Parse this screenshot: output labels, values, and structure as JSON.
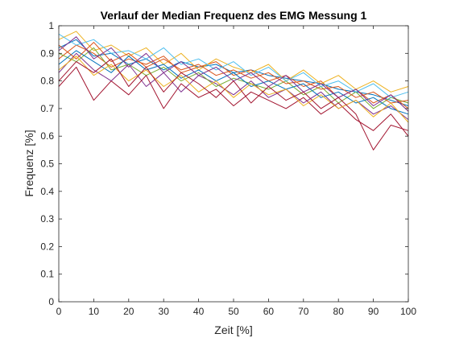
{
  "chart_data": {
    "type": "line",
    "title": "Verlauf der Median Frequenz des EMG Messung 1",
    "xlabel": "Zeit [%]",
    "ylabel": "Frequenz [%]",
    "xlim": [
      0,
      100
    ],
    "ylim": [
      0,
      1
    ],
    "xticks": [
      0,
      10,
      20,
      30,
      40,
      50,
      60,
      70,
      80,
      90,
      100
    ],
    "yticks": [
      0,
      0.1,
      0.2,
      0.3,
      0.4,
      0.5,
      0.6,
      0.7,
      0.8,
      0.9,
      1
    ],
    "ytick_labels": [
      "0",
      "0.1",
      "0.2",
      "0.3",
      "0.4",
      "0.5",
      "0.6",
      "0.7",
      "0.8",
      "0.9",
      "1"
    ],
    "grid": false,
    "box": true,
    "series": [
      {
        "color": "#0072BD",
        "x": [
          0,
          5,
          10,
          15,
          20,
          25,
          30,
          35,
          40,
          45,
          50,
          55,
          60,
          65,
          70,
          75,
          80,
          85,
          90,
          95,
          100
        ],
        "y": [
          0.92,
          0.95,
          0.89,
          0.9,
          0.86,
          0.88,
          0.84,
          0.87,
          0.85,
          0.86,
          0.83,
          0.84,
          0.82,
          0.81,
          0.8,
          0.79,
          0.77,
          0.76,
          0.75,
          0.73,
          0.71
        ]
      },
      {
        "color": "#D95319",
        "x": [
          0,
          5,
          10,
          15,
          20,
          25,
          30,
          35,
          40,
          45,
          50,
          55,
          60,
          65,
          70,
          75,
          80,
          85,
          90,
          95,
          100
        ],
        "y": [
          0.88,
          0.93,
          0.9,
          0.85,
          0.88,
          0.86,
          0.89,
          0.83,
          0.85,
          0.87,
          0.82,
          0.84,
          0.8,
          0.82,
          0.78,
          0.8,
          0.74,
          0.77,
          0.72,
          0.75,
          0.7
        ]
      },
      {
        "color": "#EDB120",
        "x": [
          0,
          5,
          10,
          15,
          20,
          25,
          30,
          35,
          40,
          45,
          50,
          55,
          60,
          65,
          70,
          75,
          80,
          85,
          90,
          95,
          100
        ],
        "y": [
          0.95,
          0.98,
          0.91,
          0.93,
          0.89,
          0.92,
          0.86,
          0.9,
          0.84,
          0.88,
          0.85,
          0.83,
          0.86,
          0.8,
          0.84,
          0.79,
          0.82,
          0.77,
          0.8,
          0.76,
          0.78
        ]
      },
      {
        "color": "#7E2F8E",
        "x": [
          0,
          5,
          10,
          15,
          20,
          25,
          30,
          35,
          40,
          45,
          50,
          55,
          60,
          65,
          70,
          75,
          80,
          85,
          90,
          95,
          100
        ],
        "y": [
          0.83,
          0.9,
          0.84,
          0.8,
          0.86,
          0.78,
          0.83,
          0.76,
          0.82,
          0.79,
          0.75,
          0.8,
          0.74,
          0.77,
          0.72,
          0.76,
          0.7,
          0.73,
          0.68,
          0.71,
          0.66
        ]
      },
      {
        "color": "#77AC30",
        "x": [
          0,
          5,
          10,
          15,
          20,
          25,
          30,
          35,
          40,
          45,
          50,
          55,
          60,
          65,
          70,
          75,
          80,
          85,
          90,
          95,
          100
        ],
        "y": [
          0.9,
          0.87,
          0.92,
          0.84,
          0.86,
          0.82,
          0.85,
          0.8,
          0.83,
          0.78,
          0.81,
          0.79,
          0.77,
          0.8,
          0.75,
          0.78,
          0.72,
          0.76,
          0.7,
          0.74,
          0.72
        ]
      },
      {
        "color": "#4DBEEE",
        "x": [
          0,
          5,
          10,
          15,
          20,
          25,
          30,
          35,
          40,
          45,
          50,
          55,
          60,
          65,
          70,
          75,
          80,
          85,
          90,
          95,
          100
        ],
        "y": [
          0.97,
          0.93,
          0.95,
          0.9,
          0.91,
          0.88,
          0.92,
          0.86,
          0.88,
          0.84,
          0.87,
          0.82,
          0.85,
          0.8,
          0.83,
          0.78,
          0.8,
          0.76,
          0.79,
          0.74,
          0.76
        ]
      },
      {
        "color": "#A2142F",
        "x": [
          0,
          5,
          10,
          15,
          20,
          25,
          30,
          35,
          40,
          45,
          50,
          55,
          60,
          65,
          70,
          75,
          80,
          85,
          90,
          95,
          100
        ],
        "y": [
          0.78,
          0.85,
          0.73,
          0.8,
          0.75,
          0.82,
          0.7,
          0.79,
          0.74,
          0.77,
          0.71,
          0.76,
          0.73,
          0.7,
          0.74,
          0.68,
          0.72,
          0.66,
          0.62,
          0.68,
          0.6
        ]
      },
      {
        "color": "#0072BD",
        "x": [
          0,
          5,
          10,
          15,
          20,
          25,
          30,
          35,
          40,
          45,
          50,
          55,
          60,
          65,
          70,
          75,
          80,
          85,
          90,
          95,
          100
        ],
        "y": [
          0.86,
          0.91,
          0.87,
          0.83,
          0.89,
          0.84,
          0.86,
          0.81,
          0.84,
          0.8,
          0.83,
          0.78,
          0.8,
          0.77,
          0.79,
          0.74,
          0.76,
          0.72,
          0.74,
          0.7,
          0.68
        ]
      },
      {
        "color": "#D95319",
        "x": [
          0,
          5,
          10,
          15,
          20,
          25,
          30,
          35,
          40,
          45,
          50,
          55,
          60,
          65,
          70,
          75,
          80,
          85,
          90,
          95,
          100
        ],
        "y": [
          0.93,
          0.88,
          0.94,
          0.87,
          0.9,
          0.85,
          0.88,
          0.84,
          0.86,
          0.82,
          0.84,
          0.81,
          0.83,
          0.79,
          0.8,
          0.77,
          0.78,
          0.74,
          0.76,
          0.72,
          0.73
        ]
      },
      {
        "color": "#EDB120",
        "x": [
          0,
          5,
          10,
          15,
          20,
          25,
          30,
          35,
          40,
          45,
          50,
          55,
          60,
          65,
          70,
          75,
          80,
          85,
          90,
          95,
          100
        ],
        "y": [
          0.84,
          0.89,
          0.82,
          0.86,
          0.8,
          0.84,
          0.78,
          0.82,
          0.76,
          0.8,
          0.74,
          0.79,
          0.75,
          0.77,
          0.71,
          0.75,
          0.7,
          0.73,
          0.67,
          0.72,
          0.65
        ]
      },
      {
        "color": "#7E2F8E",
        "x": [
          0,
          5,
          10,
          15,
          20,
          25,
          30,
          35,
          40,
          45,
          50,
          55,
          60,
          65,
          70,
          75,
          80,
          85,
          90,
          95,
          100
        ],
        "y": [
          0.91,
          0.96,
          0.88,
          0.92,
          0.85,
          0.9,
          0.83,
          0.87,
          0.82,
          0.85,
          0.8,
          0.83,
          0.78,
          0.82,
          0.76,
          0.79,
          0.74,
          0.77,
          0.71,
          0.75,
          0.69
        ]
      },
      {
        "color": "#A2142F",
        "x": [
          0,
          5,
          10,
          15,
          20,
          25,
          30,
          35,
          40,
          45,
          50,
          55,
          60,
          65,
          70,
          75,
          80,
          85,
          90,
          95,
          100
        ],
        "y": [
          0.8,
          0.87,
          0.83,
          0.88,
          0.78,
          0.85,
          0.76,
          0.83,
          0.79,
          0.74,
          0.8,
          0.72,
          0.78,
          0.73,
          0.76,
          0.7,
          0.74,
          0.68,
          0.55,
          0.64,
          0.62
        ]
      }
    ]
  }
}
